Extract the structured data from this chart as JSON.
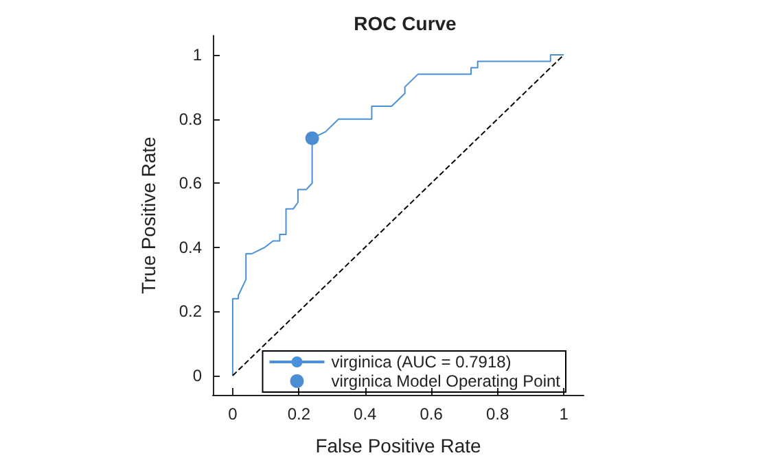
{
  "chart_data": {
    "type": "line",
    "title": "ROC Curve",
    "xlabel": "False Positive Rate",
    "ylabel": "True Positive Rate",
    "xlim": [
      -0.06,
      1.06
    ],
    "ylim": [
      -0.06,
      1.06
    ],
    "xticks": [
      0,
      0.2,
      0.4,
      0.6,
      0.8,
      1
    ],
    "yticks": [
      0,
      0.2,
      0.4,
      0.6,
      0.8,
      1
    ],
    "grid": false,
    "legend": "bottom right",
    "marker": "none",
    "series": [
      {
        "name": "virginica (AUC = 0.7918)",
        "color": "#4a90d9",
        "x": [
          0,
          0,
          0.017,
          0.017,
          0.04,
          0.04,
          0.058,
          0.097,
          0.122,
          0.142,
          0.142,
          0.161,
          0.161,
          0.183,
          0.197,
          0.197,
          0.222,
          0.24,
          0.24,
          0.28,
          0.3,
          0.32,
          0.42,
          0.42,
          0.48,
          0.52,
          0.52,
          0.56,
          0.72,
          0.72,
          0.74,
          0.74,
          0.96,
          0.96,
          1
        ],
        "values": [
          0,
          0.24,
          0.24,
          0.25,
          0.3,
          0.38,
          0.38,
          0.4,
          0.42,
          0.42,
          0.44,
          0.44,
          0.52,
          0.52,
          0.54,
          0.58,
          0.58,
          0.6,
          0.74,
          0.76,
          0.78,
          0.8,
          0.8,
          0.84,
          0.84,
          0.88,
          0.9,
          0.94,
          0.94,
          0.96,
          0.96,
          0.98,
          0.98,
          1,
          1
        ]
      },
      {
        "name": "virginica Model Operating Point",
        "type": "scatter",
        "marker": "circle",
        "color": "#1f6fc5",
        "x": [
          0.24
        ],
        "values": [
          0.74
        ]
      },
      {
        "color": "#000000",
        "line_style": "dashed",
        "x": [
          0,
          1
        ],
        "values": [
          0,
          1
        ]
      }
    ]
  }
}
